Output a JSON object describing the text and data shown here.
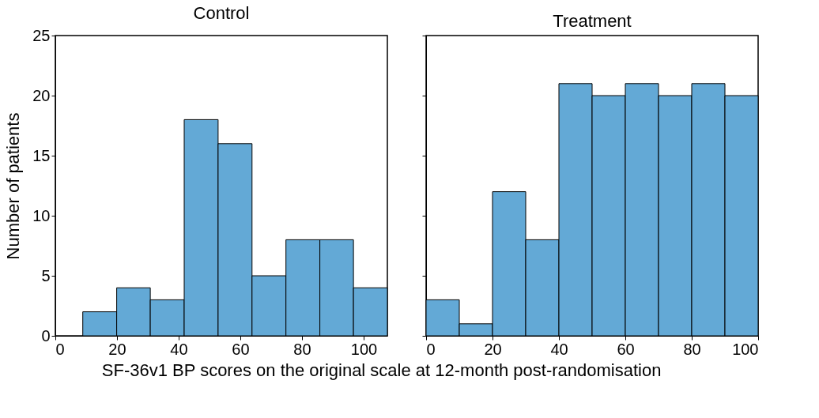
{
  "chart_data": [
    {
      "type": "histogram",
      "title": "Control",
      "xlabel": "SF-36v1 BP scores on the original scale at 12-month post-randomisation",
      "ylabel": "Number of patients",
      "color": "#63a9d6",
      "bins": [
        8.9,
        19.9,
        30.8,
        41.8,
        52.8,
        63.8,
        74.8,
        85.8,
        96.7,
        107.7
      ],
      "values": [
        2,
        4,
        3,
        18,
        16,
        5,
        8,
        8,
        4
      ],
      "xlim": [
        0,
        107.7
      ],
      "xticks": [
        0,
        20,
        40,
        60,
        80,
        100
      ],
      "ylim": [
        0,
        25
      ],
      "yticks": [
        0,
        5,
        10,
        15,
        20,
        25
      ],
      "grid": false
    },
    {
      "type": "histogram",
      "title": "Treatment",
      "color": "#63a9d6",
      "bins": [
        0,
        10,
        20,
        30,
        40,
        50,
        60,
        70,
        80,
        90,
        100
      ],
      "values": [
        3,
        1,
        12,
        8,
        21,
        20,
        21,
        20,
        21,
        20
      ],
      "xlim": [
        0,
        100
      ],
      "xticks": [
        0,
        20,
        40,
        60,
        80,
        100
      ],
      "ylim": [
        0,
        25
      ],
      "yticks": [
        0,
        5,
        10,
        15,
        20,
        25
      ],
      "grid": false,
      "tick_labels": "x"
    }
  ]
}
